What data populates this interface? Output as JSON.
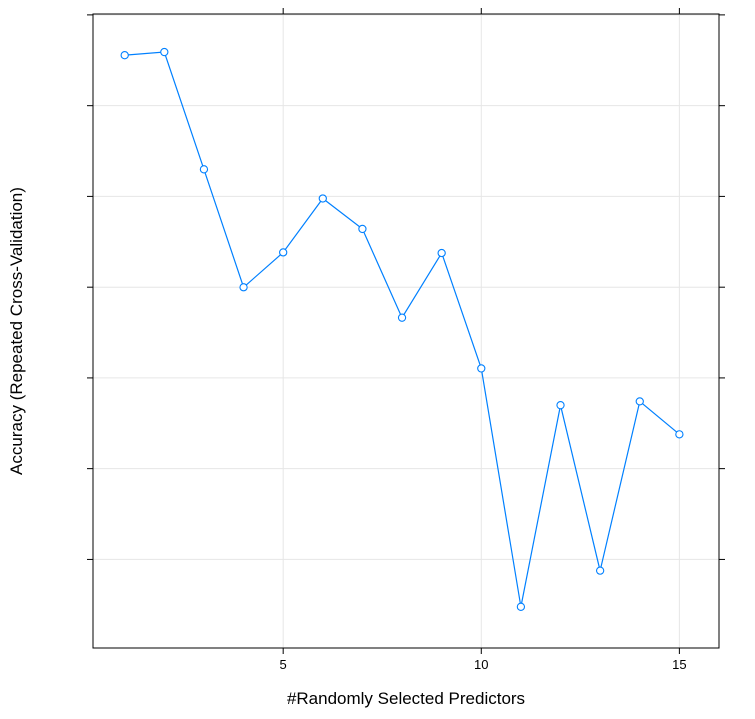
{
  "chart_data": {
    "type": "line",
    "xlabel": "#Randomly Selected Predictors",
    "ylabel": "Accuracy (Repeated Cross-Validation)",
    "x_ticks": [
      5,
      10,
      15
    ],
    "x_tick_labels": [
      "5",
      "10",
      "15"
    ],
    "xlim": [
      0.2,
      16
    ],
    "y_scale_note": "y tick labels not shown; values in relative units (0 = bottom of panel, 1 = top)",
    "ylim": [
      0,
      1
    ],
    "y_ticks": [
      0.1397,
      0.2829,
      0.426,
      0.5691,
      0.7123,
      0.8554,
      0.9986
    ],
    "grid": true,
    "legend": "none",
    "series": [
      {
        "color": "#0080ff",
        "marker": "open-circle",
        "x": [
          1,
          2,
          3,
          4,
          5,
          6,
          7,
          8,
          9,
          10,
          11,
          12,
          13,
          14,
          15
        ],
        "y": [
          0.935,
          0.94,
          0.755,
          0.569,
          0.624,
          0.709,
          0.661,
          0.521,
          0.623,
          0.441,
          0.065,
          0.383,
          0.122,
          0.389,
          0.337
        ]
      }
    ]
  }
}
